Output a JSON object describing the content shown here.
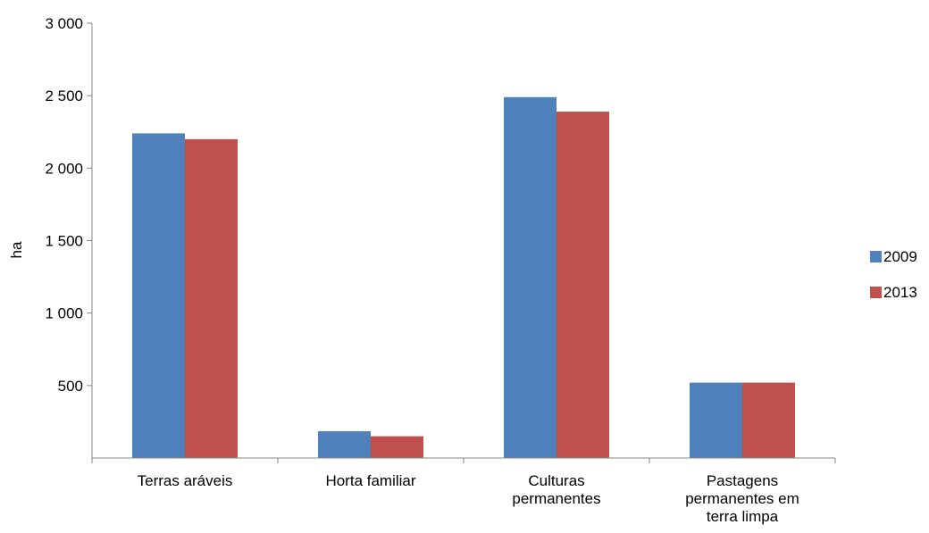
{
  "chart_data": {
    "type": "bar",
    "title": "",
    "xlabel": "",
    "ylabel": "ha",
    "ylim": [
      0,
      3000
    ],
    "yticks": [
      {
        "value": 500,
        "label": "500"
      },
      {
        "value": 1000,
        "label": "1 000"
      },
      {
        "value": 1500,
        "label": "1 500"
      },
      {
        "value": 2000,
        "label": "2 000"
      },
      {
        "value": 2500,
        "label": "2 500"
      },
      {
        "value": 3000,
        "label": "3 000"
      }
    ],
    "categories": [
      [
        "Terras aráveis"
      ],
      [
        "Horta familiar"
      ],
      [
        "Culturas",
        "permanentes"
      ],
      [
        "Pastagens",
        "permanentes em",
        "terra limpa"
      ]
    ],
    "series": [
      {
        "name": "2009",
        "color": "#4F81BD",
        "values": [
          2240,
          185,
          2490,
          520
        ]
      },
      {
        "name": "2013",
        "color": "#C0504D",
        "values": [
          2200,
          150,
          2390,
          520
        ]
      }
    ],
    "legend_position": "right",
    "grid": false
  }
}
